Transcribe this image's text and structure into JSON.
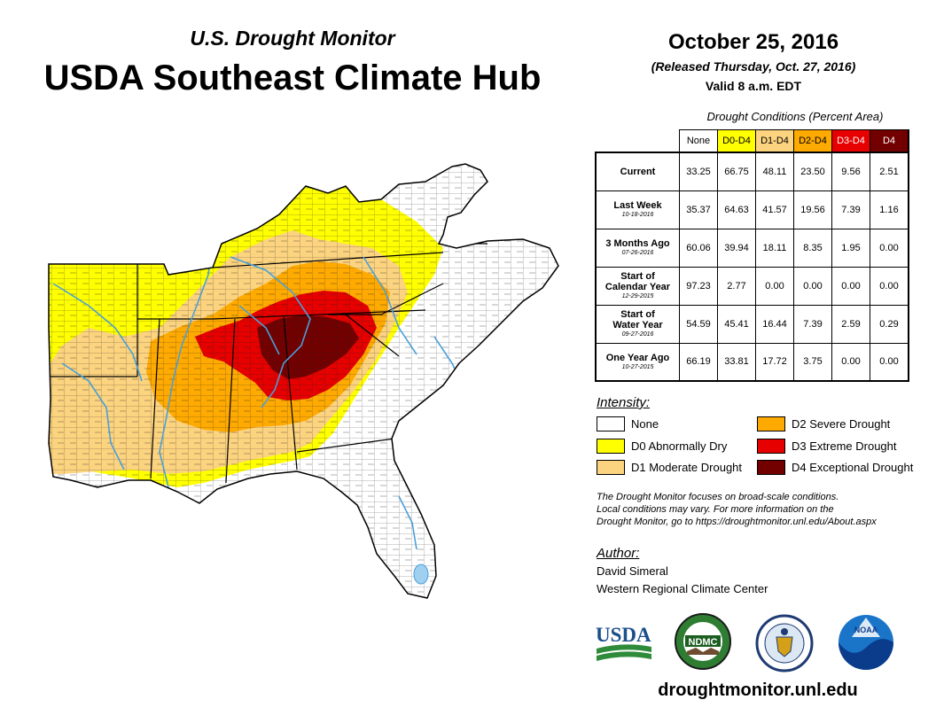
{
  "header": {
    "subtitle": "U.S. Drought Monitor",
    "title": "USDA Southeast Climate Hub",
    "date": "October 25, 2016",
    "released": "(Released Thursday, Oct. 27, 2016)",
    "valid": "Valid 8 a.m. EDT"
  },
  "table": {
    "caption": "Drought Conditions (Percent Area)",
    "columns": [
      "None",
      "D0-D4",
      "D1-D4",
      "D2-D4",
      "D3-D4",
      "D4"
    ],
    "rows": [
      {
        "label": "Current",
        "label2": "",
        "date": "",
        "values": [
          "33.25",
          "66.75",
          "48.11",
          "23.50",
          "9.56",
          "2.51"
        ]
      },
      {
        "label": "Last Week",
        "label2": "",
        "date": "10-18-2016",
        "values": [
          "35.37",
          "64.63",
          "41.57",
          "19.56",
          "7.39",
          "1.16"
        ]
      },
      {
        "label": "3 Months Ago",
        "label2": "",
        "date": "07-26-2016",
        "values": [
          "60.06",
          "39.94",
          "18.11",
          "8.35",
          "1.95",
          "0.00"
        ]
      },
      {
        "label": "Start of",
        "label2": "Calendar Year",
        "date": "12-29-2015",
        "values": [
          "97.23",
          "2.77",
          "0.00",
          "0.00",
          "0.00",
          "0.00"
        ]
      },
      {
        "label": "Start of",
        "label2": "Water Year",
        "date": "09-27-2016",
        "values": [
          "54.59",
          "45.41",
          "16.44",
          "7.39",
          "2.59",
          "0.29"
        ]
      },
      {
        "label": "One Year Ago",
        "label2": "",
        "date": "10-27-2015",
        "values": [
          "66.19",
          "33.81",
          "17.72",
          "3.75",
          "0.00",
          "0.00"
        ]
      }
    ]
  },
  "legend": {
    "heading": "Intensity:",
    "items": [
      {
        "label": "None",
        "color": "#ffffff"
      },
      {
        "label": "D0 Abnormally Dry",
        "color": "#ffff00"
      },
      {
        "label": "D1 Moderate Drought",
        "color": "#fcd37f"
      },
      {
        "label": "D2 Severe Drought",
        "color": "#ffaa00"
      },
      {
        "label": "D3 Extreme Drought",
        "color": "#e60000"
      },
      {
        "label": "D4 Exceptional Drought",
        "color": "#730000"
      }
    ]
  },
  "disclaimer": {
    "line1": "The Drought Monitor focuses on broad-scale conditions.",
    "line2": "Local conditions may vary. For more information on the",
    "line3": "Drought Monitor, go to https://droughtmonitor.unl.edu/About.aspx"
  },
  "author": {
    "heading": "Author:",
    "name": "David Simeral",
    "org": "Western Regional Climate Center"
  },
  "logos": {
    "usda": "USDA",
    "ndmc": "NDMC",
    "noaa": "NOAA"
  },
  "map": {
    "icon": "southeast-us-drought-map",
    "river_color": "#4a9fd8"
  },
  "website": "droughtmonitor.unl.edu"
}
